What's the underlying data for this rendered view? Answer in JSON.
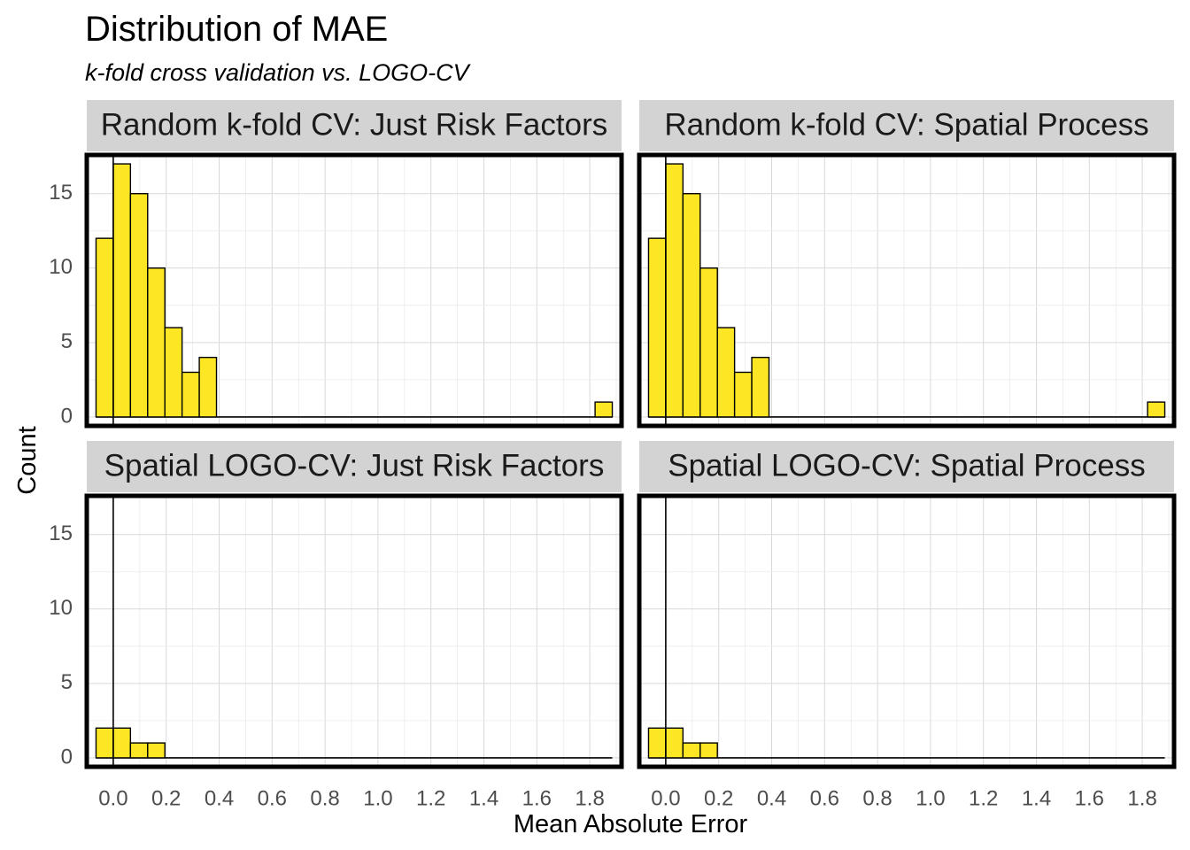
{
  "chart_data": {
    "type": "bar",
    "title": "Distribution of MAE",
    "subtitle": "k-fold cross validation vs. LOGO-CV",
    "xlabel": "Mean Absolute Error",
    "ylabel": "Count",
    "xlim": [
      -0.1,
      1.92
    ],
    "ylim": [
      -0.6,
      17.6
    ],
    "x_ticks": [
      0.0,
      0.2,
      0.4,
      0.6,
      0.8,
      1.0,
      1.2,
      1.4,
      1.6,
      1.8
    ],
    "x_tick_labels": [
      "0.0",
      "0.2",
      "0.4",
      "0.6",
      "0.8",
      "1.0",
      "1.2",
      "1.4",
      "1.6",
      "1.8"
    ],
    "y_ticks": [
      0,
      5,
      10,
      15
    ],
    "y_tick_labels": [
      "0",
      "5",
      "10",
      "15"
    ],
    "grid": true,
    "bar_color": "#FDE725",
    "bin_width": 0.065,
    "panels": [
      {
        "label": "Random k-fold CV: Just Risk Factors",
        "bins": [
          {
            "x": -0.0325,
            "count": 12
          },
          {
            "x": 0.0325,
            "count": 17
          },
          {
            "x": 0.0975,
            "count": 15
          },
          {
            "x": 0.1625,
            "count": 10
          },
          {
            "x": 0.2275,
            "count": 6
          },
          {
            "x": 0.2925,
            "count": 3
          },
          {
            "x": 0.3575,
            "count": 4
          },
          {
            "x": 1.8525,
            "count": 1
          }
        ]
      },
      {
        "label": "Random k-fold CV: Spatial Process",
        "bins": [
          {
            "x": -0.0325,
            "count": 12
          },
          {
            "x": 0.0325,
            "count": 17
          },
          {
            "x": 0.0975,
            "count": 15
          },
          {
            "x": 0.1625,
            "count": 10
          },
          {
            "x": 0.2275,
            "count": 6
          },
          {
            "x": 0.2925,
            "count": 3
          },
          {
            "x": 0.3575,
            "count": 4
          },
          {
            "x": 1.8525,
            "count": 1
          }
        ]
      },
      {
        "label": "Spatial LOGO-CV: Just Risk Factors",
        "bins": [
          {
            "x": -0.0325,
            "count": 2
          },
          {
            "x": 0.0325,
            "count": 2
          },
          {
            "x": 0.0975,
            "count": 1
          },
          {
            "x": 0.1625,
            "count": 1
          }
        ]
      },
      {
        "label": "Spatial LOGO-CV: Spatial Process",
        "bins": [
          {
            "x": -0.0325,
            "count": 2
          },
          {
            "x": 0.0325,
            "count": 2
          },
          {
            "x": 0.0975,
            "count": 1
          },
          {
            "x": 0.1625,
            "count": 1
          }
        ]
      }
    ]
  }
}
